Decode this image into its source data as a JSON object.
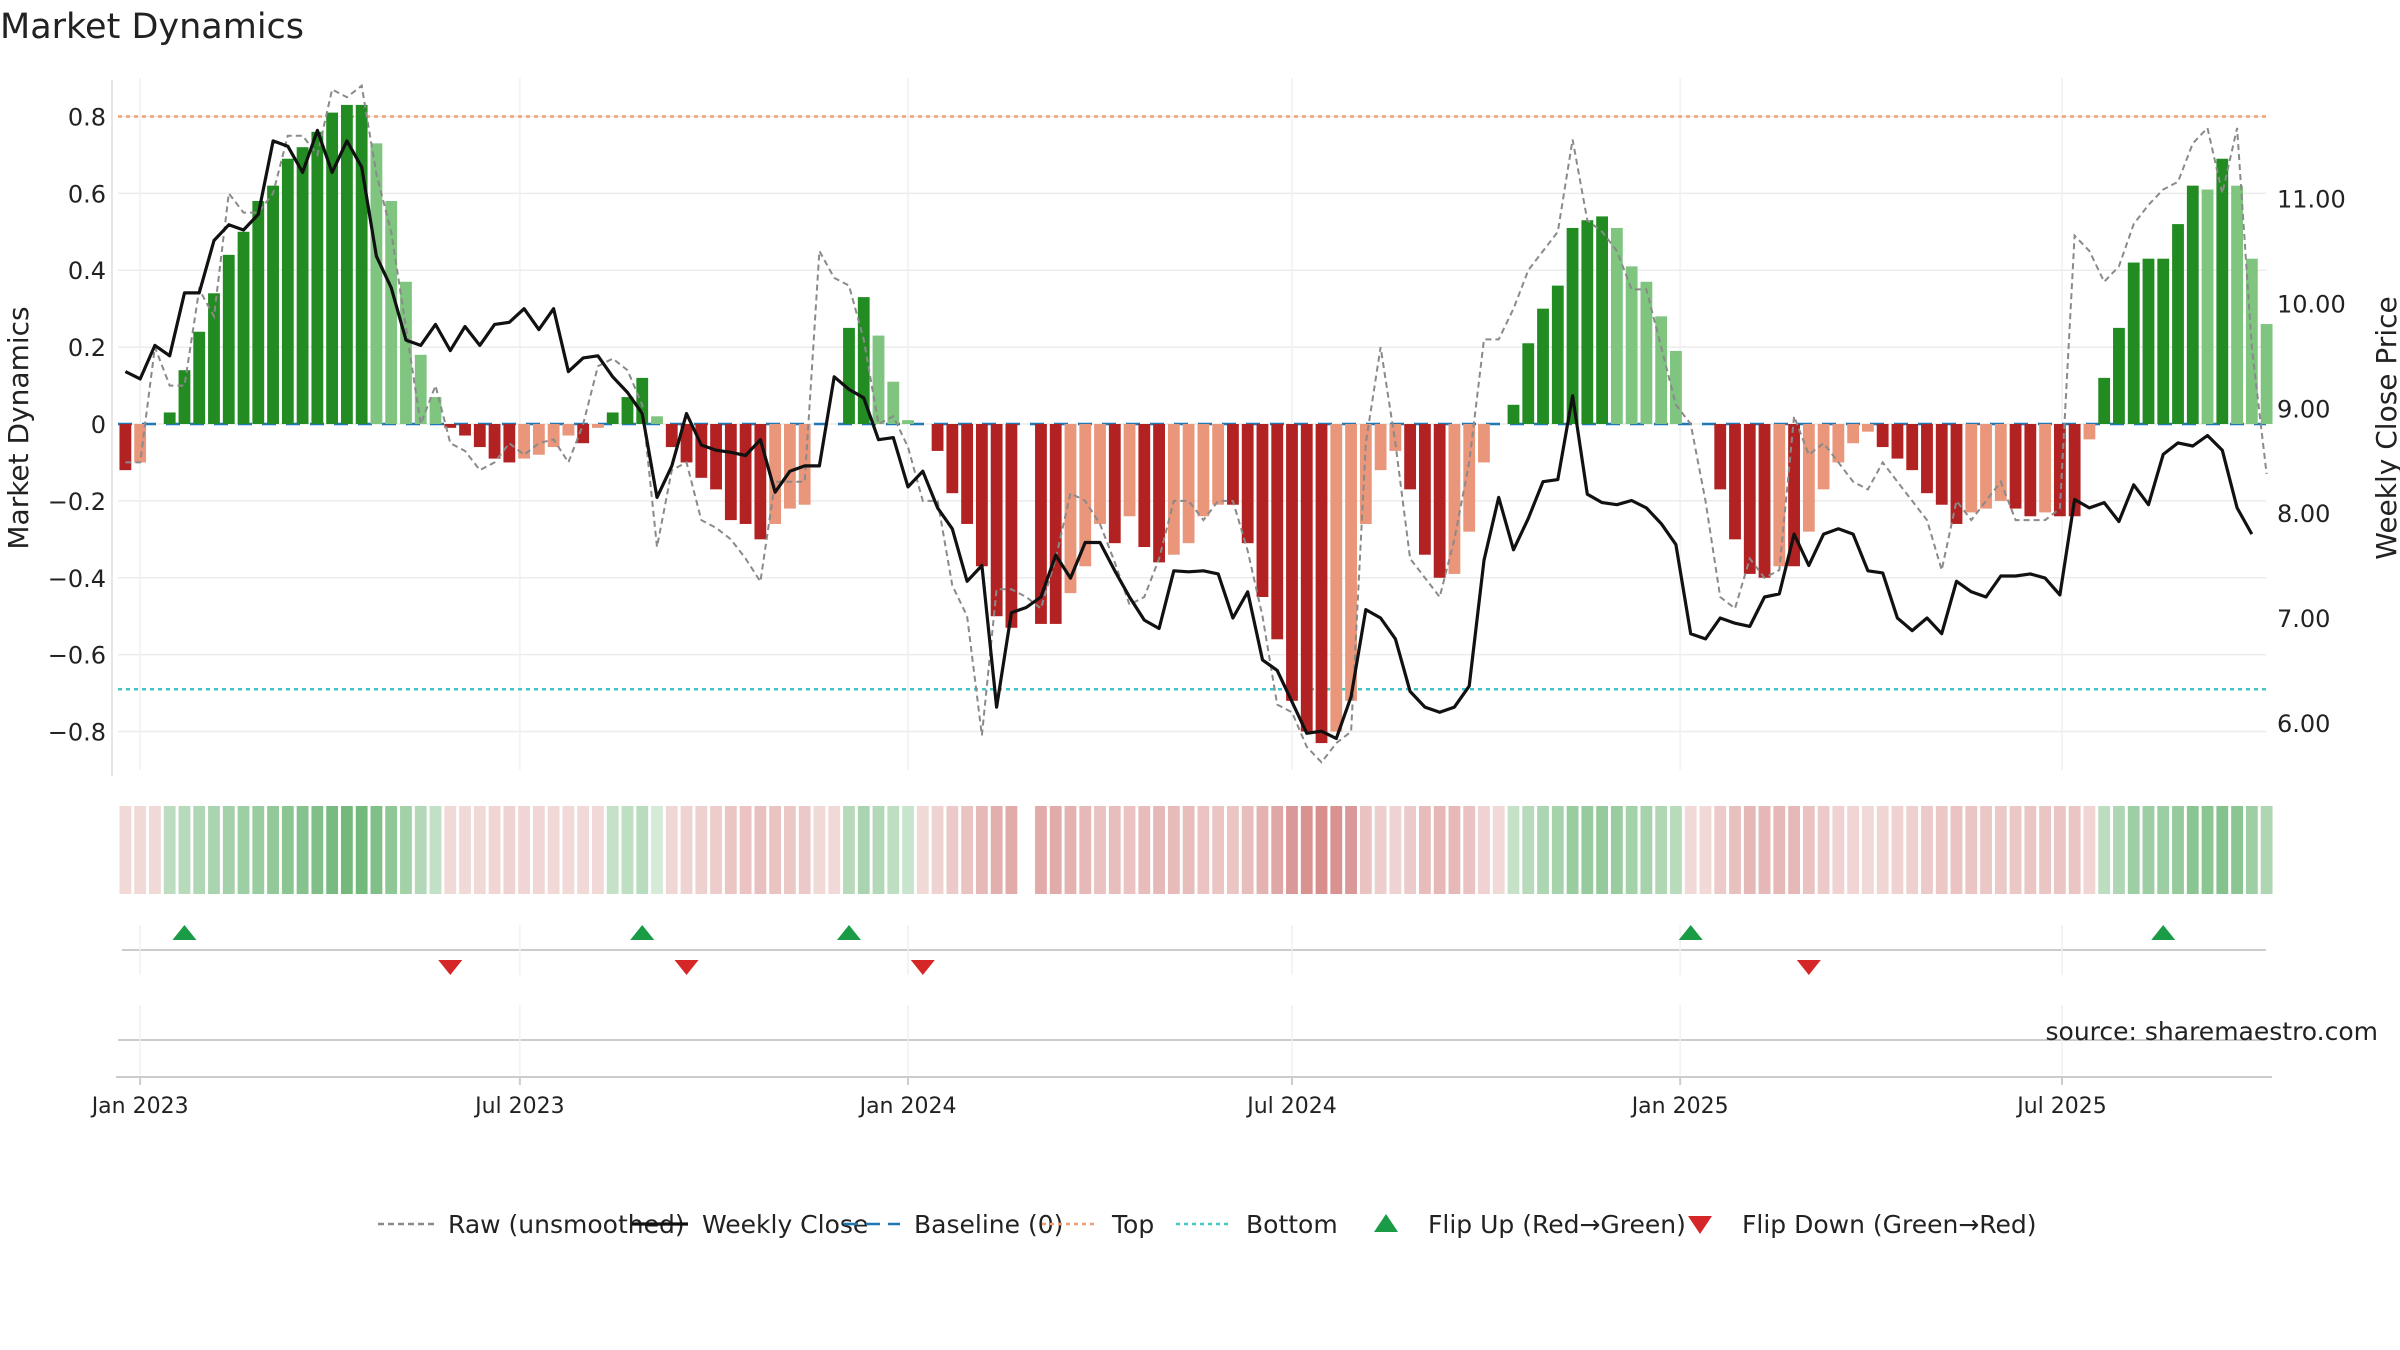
{
  "chart_data": {
    "type": "bar",
    "title": "Market Dynamics",
    "ylabel": "Market Dynamics",
    "y2label": "Weekly Close Price",
    "source": "source: sharemaestro.com",
    "ylim": [
      -0.9,
      0.9
    ],
    "y2lim": [
      5.55,
      12.15
    ],
    "yticks": [
      0.8,
      0.6,
      0.4,
      0.2,
      0,
      -0.2,
      -0.4,
      -0.6,
      -0.8
    ],
    "yticklabels": [
      "0.8",
      "0.6",
      "0.4",
      "0.2",
      "0",
      "−0.2",
      "−0.4",
      "−0.6",
      "−0.8"
    ],
    "y2ticks": [
      11.0,
      10.0,
      9.0,
      8.0,
      7.0,
      6.0
    ],
    "y2ticklabels": [
      "11.00",
      "10.00",
      "9.00",
      "8.00",
      "7.00",
      "6.00"
    ],
    "top_level": 0.8,
    "bottom_level": -0.69,
    "x_start": "2022-12-26",
    "x_step_days": 7,
    "xticks": [
      {
        "date": "2023-01-02",
        "label": "Jan 2023"
      },
      {
        "date": "2023-07-01",
        "label": "Jul 2023"
      },
      {
        "date": "2024-01-01",
        "label": "Jan 2024"
      },
      {
        "date": "2024-07-01",
        "label": "Jul 2024"
      },
      {
        "date": "2025-01-01",
        "label": "Jan 2025"
      },
      {
        "date": "2025-07-01",
        "label": "Jul 2025"
      }
    ],
    "grid": true,
    "legend_position": "bottom-center",
    "legend": [
      {
        "label": "Raw (unsmoothed)",
        "kind": "dashed-line",
        "color": "#8a8a8a"
      },
      {
        "label": "Weekly Close",
        "kind": "line",
        "color": "#111111"
      },
      {
        "label": "Baseline (0)",
        "kind": "dashed-line",
        "color": "#1f77b4"
      },
      {
        "label": "Top",
        "kind": "dotted-line",
        "color": "#f0a070"
      },
      {
        "label": "Bottom",
        "kind": "dotted-line",
        "color": "#40c8c8"
      },
      {
        "label": "Flip Up (Red→Green)",
        "kind": "triangle-up",
        "color": "#1a9b46"
      },
      {
        "label": "Flip Down (Green→Red)",
        "kind": "triangle-down",
        "color": "#d62728"
      }
    ],
    "colors": {
      "strong_green": "#228b22",
      "light_green": "#7fc47f",
      "strong_red": "#b22222",
      "light_red": "#e9967a",
      "raw_line": "#8a8a8a",
      "close_line": "#111111",
      "baseline": "#1f77b4",
      "top": "#f0a070",
      "bottom": "#40c8c8",
      "flip_up": "#1a9b46",
      "flip_down": "#d62728",
      "heat_green": "#3e9e4a",
      "heat_red": "#c0504d"
    },
    "dynamics": [
      -0.12,
      -0.1,
      0,
      0.03,
      0.14,
      0.24,
      0.34,
      0.44,
      0.5,
      0.58,
      0.62,
      0.69,
      0.72,
      0.76,
      0.81,
      0.83,
      0.83,
      0.73,
      0.58,
      0.37,
      0.18,
      0.07,
      -0.01,
      -0.03,
      -0.06,
      -0.09,
      -0.1,
      -0.09,
      -0.08,
      -0.06,
      -0.03,
      -0.05,
      -0.01,
      0.03,
      0.07,
      0.12,
      0.02,
      -0.06,
      -0.1,
      -0.14,
      -0.17,
      -0.25,
      -0.26,
      -0.3,
      -0.26,
      -0.22,
      -0.21,
      0,
      0,
      0.25,
      0.33,
      0.23,
      0.11,
      0.01,
      0,
      -0.07,
      -0.18,
      -0.26,
      -0.37,
      -0.5,
      -0.53,
      0,
      -0.52,
      -0.52,
      -0.44,
      -0.37,
      -0.26,
      -0.31,
      -0.24,
      -0.32,
      -0.36,
      -0.34,
      -0.31,
      -0.24,
      -0.21,
      -0.21,
      -0.31,
      -0.45,
      -0.56,
      -0.72,
      -0.8,
      -0.83,
      -0.8,
      -0.72,
      -0.26,
      -0.12,
      -0.07,
      -0.17,
      -0.34,
      -0.4,
      -0.39,
      -0.28,
      -0.1,
      0,
      0.05,
      0.21,
      0.3,
      0.36,
      0.51,
      0.53,
      0.54,
      0.51,
      0.41,
      0.37,
      0.28,
      0.19,
      0,
      0,
      -0.17,
      -0.3,
      -0.39,
      -0.4,
      -0.37,
      -0.37,
      -0.28,
      -0.17,
      -0.1,
      -0.05,
      -0.02,
      -0.06,
      -0.09,
      -0.12,
      -0.18,
      -0.21,
      -0.26,
      -0.23,
      -0.22,
      -0.2,
      -0.22,
      -0.24,
      -0.23,
      -0.24,
      -0.24,
      -0.04,
      0.12,
      0.25,
      0.42,
      0.43,
      0.43,
      0.52,
      0.62,
      0.61,
      0.69,
      0.62,
      0.43,
      0.26
    ],
    "raw": [
      -0.1,
      -0.1,
      0.2,
      0.1,
      0.1,
      0.35,
      0.28,
      0.6,
      0.55,
      0.55,
      0.6,
      0.75,
      0.75,
      0.7,
      0.87,
      0.85,
      0.88,
      0.65,
      0.5,
      0.25,
      0.0,
      0.1,
      -0.05,
      -0.07,
      -0.12,
      -0.1,
      -0.05,
      -0.08,
      -0.05,
      -0.04,
      -0.1,
      0.0,
      0.15,
      0.17,
      0.14,
      0.05,
      -0.32,
      -0.12,
      -0.1,
      -0.25,
      -0.27,
      -0.3,
      -0.35,
      -0.41,
      -0.15,
      -0.15,
      -0.15,
      0.45,
      0.38,
      0.36,
      0.22,
      0.0,
      0.02,
      -0.06,
      -0.2,
      -0.2,
      -0.42,
      -0.5,
      -0.81,
      -0.43,
      -0.43,
      -0.45,
      -0.48,
      -0.35,
      -0.18,
      -0.2,
      -0.26,
      -0.36,
      -0.47,
      -0.45,
      -0.35,
      -0.2,
      -0.2,
      -0.25,
      -0.2,
      -0.2,
      -0.33,
      -0.5,
      -0.73,
      -0.75,
      -0.84,
      -0.88,
      -0.83,
      -0.8,
      -0.05,
      0.2,
      -0.05,
      -0.35,
      -0.4,
      -0.45,
      -0.3,
      -0.1,
      0.22,
      0.22,
      0.3,
      0.4,
      0.45,
      0.5,
      0.74,
      0.53,
      0.5,
      0.45,
      0.35,
      0.35,
      0.2,
      0.05,
      0.0,
      -0.2,
      -0.45,
      -0.48,
      -0.35,
      -0.4,
      -0.38,
      0.02,
      -0.08,
      -0.05,
      -0.1,
      -0.15,
      -0.17,
      -0.1,
      -0.15,
      -0.2,
      -0.25,
      -0.38,
      -0.2,
      -0.25,
      -0.2,
      -0.15,
      -0.25,
      -0.25,
      -0.25,
      -0.22,
      0.49,
      0.45,
      0.37,
      0.41,
      0.52,
      0.57,
      0.61,
      0.63,
      0.73,
      0.77,
      0.6,
      0.77,
      0.2,
      -0.13
    ],
    "close": [
      9.35,
      9.28,
      9.6,
      9.5,
      10.1,
      10.1,
      10.6,
      10.75,
      10.7,
      10.85,
      11.55,
      11.5,
      11.25,
      11.65,
      11.25,
      11.55,
      11.3,
      10.45,
      10.15,
      9.65,
      9.6,
      9.8,
      9.55,
      9.78,
      9.6,
      9.8,
      9.82,
      9.95,
      9.75,
      9.95,
      9.35,
      9.48,
      9.5,
      9.3,
      9.15,
      8.95,
      8.15,
      8.45,
      8.95,
      8.65,
      8.6,
      8.58,
      8.55,
      8.7,
      8.2,
      8.4,
      8.45,
      8.45,
      9.3,
      9.18,
      9.1,
      8.7,
      8.72,
      8.25,
      8.4,
      8.05,
      7.85,
      7.35,
      7.5,
      6.15,
      7.05,
      7.1,
      7.2,
      7.6,
      7.38,
      7.72,
      7.72,
      7.45,
      7.2,
      6.98,
      6.9,
      7.45,
      7.44,
      7.45,
      7.42,
      7.0,
      7.25,
      6.6,
      6.5,
      6.2,
      5.9,
      5.92,
      5.85,
      6.25,
      7.08,
      7.0,
      6.8,
      6.3,
      6.15,
      6.1,
      6.15,
      6.35,
      7.55,
      8.15,
      7.65,
      7.95,
      8.3,
      8.32,
      9.12,
      8.18,
      8.1,
      8.08,
      8.12,
      8.05,
      7.9,
      7.7,
      6.85,
      6.8,
      7.0,
      6.95,
      6.92,
      7.2,
      7.23,
      7.8,
      7.5,
      7.8,
      7.85,
      7.8,
      7.45,
      7.43,
      7.0,
      6.88,
      7.0,
      6.85,
      7.35,
      7.25,
      7.2,
      7.4,
      7.4,
      7.42,
      7.38,
      7.22,
      8.13,
      8.05,
      8.1,
      7.92,
      8.27,
      8.08,
      8.56,
      8.67,
      8.64,
      8.74,
      8.6,
      8.05,
      7.8
    ],
    "heat_intensity": [
      0.22,
      0.22,
      0.22,
      0.35,
      0.38,
      0.41,
      0.44,
      0.47,
      0.5,
      0.53,
      0.56,
      0.6,
      0.63,
      0.66,
      0.7,
      0.72,
      0.72,
      0.66,
      0.58,
      0.48,
      0.4,
      0.32,
      0.22,
      0.22,
      0.22,
      0.24,
      0.25,
      0.24,
      0.23,
      0.22,
      0.22,
      0.22,
      0.22,
      0.3,
      0.33,
      0.36,
      0.22,
      0.23,
      0.25,
      0.27,
      0.29,
      0.33,
      0.34,
      0.36,
      0.34,
      0.32,
      0.31,
      0.22,
      0.22,
      0.38,
      0.44,
      0.4,
      0.34,
      0.28,
      0.22,
      0.25,
      0.3,
      0.34,
      0.4,
      0.46,
      0.48,
      0,
      0.48,
      0.48,
      0.44,
      0.4,
      0.35,
      0.37,
      0.34,
      0.38,
      0.4,
      0.39,
      0.37,
      0.34,
      0.33,
      0.33,
      0.37,
      0.44,
      0.5,
      0.58,
      0.62,
      0.64,
      0.62,
      0.58,
      0.35,
      0.28,
      0.25,
      0.3,
      0.38,
      0.41,
      0.4,
      0.35,
      0.26,
      0.22,
      0.3,
      0.38,
      0.43,
      0.46,
      0.53,
      0.54,
      0.55,
      0.53,
      0.48,
      0.46,
      0.41,
      0.37,
      0.22,
      0.22,
      0.3,
      0.36,
      0.41,
      0.41,
      0.4,
      0.4,
      0.35,
      0.3,
      0.26,
      0.24,
      0.22,
      0.24,
      0.26,
      0.27,
      0.3,
      0.32,
      0.34,
      0.33,
      0.32,
      0.31,
      0.32,
      0.33,
      0.33,
      0.33,
      0.33,
      0.24,
      0.35,
      0.42,
      0.5,
      0.51,
      0.51,
      0.55,
      0.6,
      0.6,
      0.63,
      0.6,
      0.5,
      0.42
    ],
    "flips_up": [
      4,
      35,
      49,
      106,
      138
    ],
    "flips_down": [
      22,
      38,
      54,
      114
    ]
  }
}
